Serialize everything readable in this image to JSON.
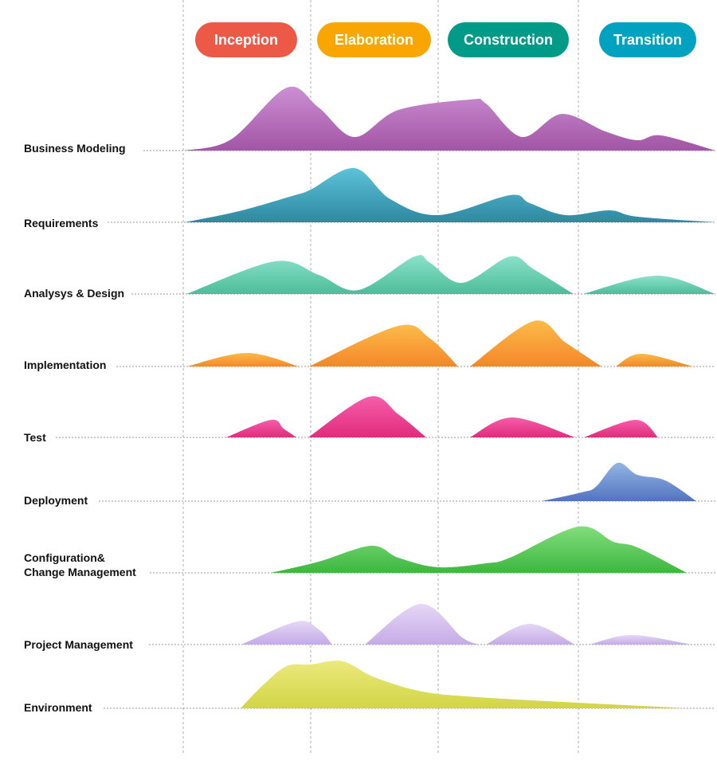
{
  "phases": [
    {
      "label": "Inception",
      "color": "#ec5a47"
    },
    {
      "label": "Elaboration",
      "color": "#f9a602"
    },
    {
      "label": "Construction",
      "color": "#009a88"
    },
    {
      "label": "Transition",
      "color": "#00a2c0"
    }
  ],
  "disciplines": [
    {
      "label": "Business Modeling",
      "colors": [
        "#cc8fd3",
        "#a255a5"
      ]
    },
    {
      "label": "Requirements",
      "colors": [
        "#5cc3d8",
        "#2e88a2"
      ]
    },
    {
      "label": "Analysys & Design",
      "colors": [
        "#8ae2cb",
        "#4dbd98"
      ]
    },
    {
      "label": "Implementation",
      "colors": [
        "#fcbb48",
        "#f4872a"
      ]
    },
    {
      "label": "Test",
      "colors": [
        "#f65eab",
        "#e02c7b"
      ]
    },
    {
      "label": "Deployment",
      "colors": [
        "#93b5e4",
        "#5274bf"
      ]
    },
    {
      "label": "Configuration&",
      "label2": "Change Management",
      "colors": [
        "#82de7c",
        "#3db741"
      ]
    },
    {
      "label": "Project Management",
      "colors": [
        "#e6d7f6",
        "#c4abe7"
      ]
    },
    {
      "label": "Environment",
      "colors": [
        "#ece97e",
        "#d2d545"
      ]
    }
  ]
}
